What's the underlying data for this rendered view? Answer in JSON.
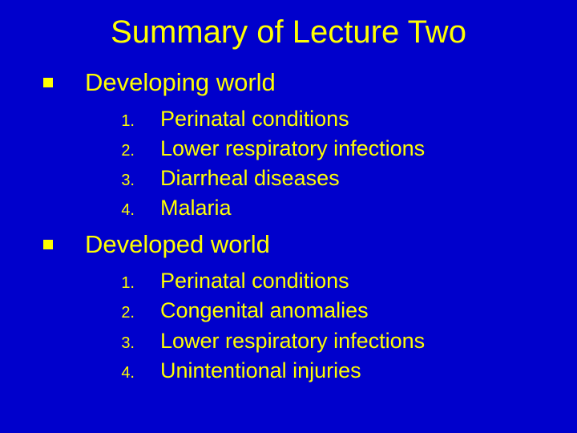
{
  "background_color": "#0000cc",
  "text_color": "#ffff00",
  "title": "Summary of Lecture Two",
  "sections": [
    {
      "heading": "Developing world",
      "items": [
        {
          "num": "1.",
          "text": "Perinatal conditions"
        },
        {
          "num": "2.",
          "text": "Lower respiratory infections"
        },
        {
          "num": "3.",
          "text": "Diarrheal diseases"
        },
        {
          "num": "4.",
          "text": "Malaria"
        }
      ]
    },
    {
      "heading": "Developed world",
      "items": [
        {
          "num": "1.",
          "text": "Perinatal conditions"
        },
        {
          "num": "2.",
          "text": "Congenital anomalies"
        },
        {
          "num": "3.",
          "text": "Lower respiratory infections"
        },
        {
          "num": "4.",
          "text": "Unintentional injuries"
        }
      ]
    }
  ]
}
